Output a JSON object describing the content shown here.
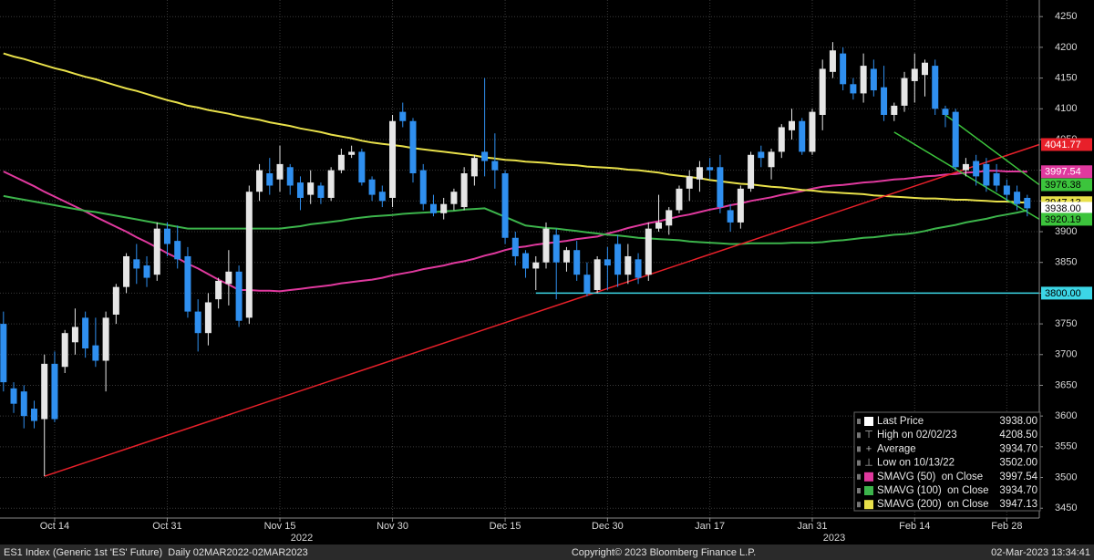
{
  "chart_data": {
    "type": "candlestick",
    "up_color": "#e6e6e6",
    "down_color": "#2f8fef",
    "categories": [
      null,
      null,
      null,
      null,
      null,
      "Oct 14",
      null,
      null,
      null,
      null,
      null,
      null,
      null,
      null,
      null,
      null,
      "Oct 31",
      null,
      null,
      null,
      null,
      null,
      null,
      null,
      null,
      null,
      null,
      "Nov 15",
      null,
      null,
      null,
      null,
      null,
      null,
      null,
      null,
      null,
      null,
      "Nov 30",
      null,
      null,
      null,
      null,
      null,
      null,
      null,
      null,
      null,
      null,
      "Dec 15",
      null,
      null,
      null,
      null,
      null,
      null,
      null,
      null,
      null,
      "Dec 30",
      null,
      null,
      null,
      null,
      null,
      null,
      null,
      null,
      null,
      "Jan 17",
      null,
      null,
      null,
      null,
      null,
      null,
      null,
      null,
      null,
      "Jan 31",
      null,
      null,
      null,
      null,
      null,
      null,
      null,
      null,
      null,
      "Feb 14",
      null,
      null,
      null,
      null,
      null,
      null,
      null,
      null,
      "Feb 28",
      null,
      null
    ],
    "years": [
      {
        "index": 27,
        "label": "2022"
      },
      {
        "index": 79,
        "label": "2023"
      }
    ],
    "open": [
      3750,
      3645,
      3640,
      3612,
      3595,
      3685,
      3680,
      3720,
      3760,
      3715,
      3690,
      3765,
      3810,
      3855,
      3845,
      3830,
      3905,
      3885,
      3860,
      3770,
      3735,
      3790,
      3815,
      3835,
      3760,
      3965,
      3995,
      3985,
      4005,
      3980,
      3960,
      3975,
      3955,
      4000,
      4025,
      4030,
      3985,
      3965,
      3955,
      4095,
      4080,
      4000,
      3945,
      3930,
      3945,
      3940,
      3990,
      4030,
      4015,
      3995,
      3890,
      3865,
      3840,
      3850,
      3895,
      3850,
      3870,
      3830,
      3805,
      3855,
      3880,
      3830,
      3855,
      3830,
      3905,
      3910,
      3935,
      3970,
      3985,
      4005,
      4005,
      3935,
      3915,
      3970,
      4030,
      4005,
      4030,
      4065,
      4080,
      4030,
      4090,
      4160,
      4190,
      4140,
      4125,
      4165,
      4135,
      4090,
      4105,
      4145,
      4155,
      4170,
      4100,
      4095,
      4000,
      4015,
      4010,
      3995,
      3975,
      3965,
      3955
    ],
    "high": [
      3770,
      3655,
      3650,
      3625,
      3700,
      3705,
      3740,
      3775,
      3770,
      3760,
      3770,
      3815,
      3865,
      3880,
      3860,
      3915,
      3915,
      3910,
      3875,
      3790,
      3800,
      3825,
      3870,
      3845,
      3975,
      4010,
      4020,
      4040,
      4010,
      3990,
      4000,
      3980,
      4005,
      4035,
      4040,
      4035,
      3990,
      3975,
      4090,
      4110,
      4085,
      4010,
      3960,
      3955,
      3970,
      4005,
      4025,
      4150,
      4060,
      4000,
      3900,
      3870,
      3860,
      3915,
      3905,
      3875,
      3885,
      3850,
      3860,
      3875,
      3895,
      3880,
      3865,
      3915,
      3960,
      3940,
      3975,
      4000,
      4015,
      4020,
      4025,
      3945,
      3975,
      4030,
      4040,
      4035,
      4075,
      4100,
      4085,
      4100,
      4180,
      4208.5,
      4200,
      4150,
      4190,
      4180,
      4170,
      4110,
      4160,
      4190,
      4180,
      4180,
      4105,
      4100,
      4020,
      4025,
      4020,
      4010,
      3985,
      3975,
      3960
    ],
    "low": [
      3640,
      3605,
      3580,
      3580,
      3502,
      3590,
      3670,
      3700,
      3695,
      3680,
      3640,
      3750,
      3800,
      3815,
      3810,
      3820,
      3860,
      3840,
      3760,
      3705,
      3715,
      3775,
      3780,
      3745,
      3750,
      3950,
      3960,
      3965,
      3960,
      3935,
      3945,
      3945,
      3950,
      3995,
      4020,
      3975,
      3950,
      3940,
      3940,
      4070,
      3980,
      3935,
      3925,
      3920,
      3935,
      3935,
      3975,
      3990,
      3970,
      3880,
      3845,
      3825,
      3805,
      3840,
      3790,
      3835,
      3820,
      3795,
      3800,
      3805,
      3810,
      3815,
      3815,
      3820,
      3900,
      3895,
      3930,
      3950,
      3965,
      3985,
      3930,
      3900,
      3905,
      3965,
      4005,
      3985,
      4020,
      4050,
      4025,
      4025,
      4065,
      4150,
      4130,
      4115,
      4110,
      4120,
      4080,
      4080,
      4095,
      4110,
      4120,
      4090,
      4070,
      4000,
      3990,
      3975,
      3965,
      3965,
      3950,
      3935,
      3925
    ],
    "close": [
      3655,
      3620,
      3600,
      3592,
      3685,
      3595,
      3735,
      3745,
      3710,
      3690,
      3760,
      3810,
      3860,
      3840,
      3825,
      3905,
      3880,
      3855,
      3770,
      3735,
      3785,
      3820,
      3835,
      3755,
      3965,
      4000,
      3975,
      4010,
      3975,
      3955,
      3980,
      3955,
      4000,
      4025,
      4030,
      3980,
      3960,
      3950,
      4080,
      4080,
      3995,
      3945,
      3930,
      3945,
      3965,
      3995,
      4020,
      4015,
      4000,
      3890,
      3860,
      3840,
      3850,
      3905,
      3850,
      3870,
      3830,
      3800,
      3855,
      3845,
      3830,
      3860,
      3825,
      3905,
      3915,
      3935,
      3970,
      3990,
      4005,
      4000,
      3940,
      3915,
      3970,
      4025,
      4020,
      4030,
      4070,
      4080,
      4030,
      4095,
      4165,
      4195,
      4140,
      4125,
      4170,
      4130,
      4090,
      4105,
      4150,
      4165,
      4175,
      4100,
      4090,
      4005,
      4010,
      3990,
      3975,
      3975,
      3960,
      3945,
      3938
    ],
    "series": [
      {
        "color": "#e0399e",
        "values": [
          3998,
          3990,
          3982,
          3974,
          3965,
          3957,
          3949,
          3941,
          3933,
          3924,
          3916,
          3908,
          3900,
          3891,
          3883,
          3874,
          3865,
          3857,
          3848,
          3840,
          3831,
          3822,
          3814,
          3805,
          3805,
          3804,
          3804,
          3803,
          3805,
          3807,
          3809,
          3811,
          3813,
          3816,
          3818,
          3820,
          3822,
          3825,
          3829,
          3832,
          3835,
          3839,
          3842,
          3845,
          3849,
          3852,
          3856,
          3861,
          3865,
          3870,
          3874,
          3876,
          3879,
          3881,
          3883,
          3885,
          3888,
          3890,
          3892,
          3897,
          3901,
          3906,
          3910,
          3914,
          3917,
          3921,
          3925,
          3928,
          3932,
          3936,
          3939,
          3943,
          3946,
          3950,
          3953,
          3956,
          3960,
          3963,
          3966,
          3970,
          3973,
          3975,
          3976,
          3978,
          3980,
          3981,
          3983,
          3985,
          3986,
          3988,
          3990,
          3991,
          3993,
          3994,
          3996,
          3997,
          3999,
          3999,
          3998,
          3998,
          3997.54
        ]
      },
      {
        "color": "#3cb44b",
        "values": [
          3958,
          3955,
          3952,
          3949,
          3946,
          3943,
          3940,
          3937,
          3934,
          3932,
          3929,
          3926,
          3923,
          3920,
          3917,
          3914,
          3911,
          3908,
          3905,
          3905,
          3905,
          3905,
          3905,
          3905,
          3905,
          3905,
          3905,
          3905,
          3907,
          3909,
          3912,
          3914,
          3916,
          3918,
          3921,
          3923,
          3925,
          3926,
          3927,
          3929,
          3930,
          3931,
          3932,
          3933,
          3934,
          3936,
          3937,
          3938,
          3931,
          3924,
          3917,
          3910,
          3908,
          3906,
          3905,
          3903,
          3901,
          3899,
          3897,
          3895,
          3894,
          3892,
          3890,
          3889,
          3888,
          3887,
          3886,
          3884,
          3883,
          3882,
          3881,
          3880,
          3880,
          3881,
          3881,
          3881,
          3881,
          3882,
          3882,
          3882,
          3883,
          3885,
          3886,
          3888,
          3890,
          3891,
          3893,
          3895,
          3896,
          3898,
          3901,
          3905,
          3908,
          3911,
          3915,
          3918,
          3921,
          3925,
          3928,
          3931,
          3934.7
        ]
      },
      {
        "color": "#e8e04a",
        "values": [
          4190,
          4185,
          4181,
          4176,
          4171,
          4166,
          4162,
          4157,
          4152,
          4148,
          4143,
          4138,
          4133,
          4129,
          4124,
          4119,
          4114,
          4110,
          4105,
          4102,
          4098,
          4095,
          4092,
          4088,
          4085,
          4082,
          4078,
          4075,
          4072,
          4068,
          4065,
          4062,
          4058,
          4055,
          4052,
          4048,
          4045,
          4043,
          4041,
          4039,
          4036,
          4034,
          4032,
          4030,
          4028,
          4026,
          4024,
          4021,
          4019,
          4017,
          4016,
          4014,
          4013,
          4012,
          4010,
          4009,
          4008,
          4006,
          4005,
          4004,
          4003,
          4001,
          4000,
          3998,
          3996,
          3993,
          3991,
          3989,
          3987,
          3984,
          3982,
          3980,
          3978,
          3977,
          3975,
          3973,
          3972,
          3970,
          3968,
          3967,
          3965,
          3964,
          3963,
          3962,
          3961,
          3959,
          3958,
          3957,
          3956,
          3955,
          3954,
          3954,
          3953,
          3952,
          3952,
          3951,
          3950,
          3949,
          3949,
          3948,
          3947.13
        ]
      }
    ],
    "trendlines": [
      {
        "color": "#e8202a",
        "from_index": 4,
        "from_value": 3502,
        "to_value": 4041.77,
        "tag_text": "#ffffff"
      },
      {
        "color": "#3cc43c",
        "from_index": 92,
        "from_value": 4090,
        "to_value": 3976.38,
        "tag_text": "#000000"
      },
      {
        "color": "#3cc43c",
        "from_index": 87,
        "from_value": 4062,
        "to_value": 3920.19,
        "tag_text": "#000000"
      }
    ],
    "hline": {
      "color": "#3cd6e6",
      "from_index": 52,
      "value": 3800,
      "label": "3800.00"
    },
    "ylim": [
      3434,
      4277
    ],
    "yticks": [
      3450,
      3500,
      3550,
      3600,
      3650,
      3700,
      3750,
      3800,
      3850,
      3900,
      3950,
      4000,
      4050,
      4100,
      4150,
      4200,
      4250
    ],
    "grid": true,
    "stats": {
      "labels": [
        "Last Price",
        "High on 02/02/23",
        "Average",
        "Low on 10/13/22",
        "SMAVG (50)  on Close",
        "SMAVG (100)  on Close",
        "SMAVG (200)  on Close"
      ],
      "values": [
        3938,
        4208.5,
        3934.7,
        3502,
        3997.54,
        3934.7,
        3947.13
      ],
      "value_labels": [
        "3938.00",
        "4208.50",
        "3934.70",
        "3502.00",
        "3997.54",
        "3934.70",
        "3947.13"
      ]
    },
    "footer": {
      "left": "ES1 Index (Generic 1st 'ES' Future)  Daily 02MAR2022-02MAR2023",
      "center": "Copyright© 2023 Bloomberg Finance L.P.",
      "right": "02-Mar-2023 13:34:41"
    }
  }
}
